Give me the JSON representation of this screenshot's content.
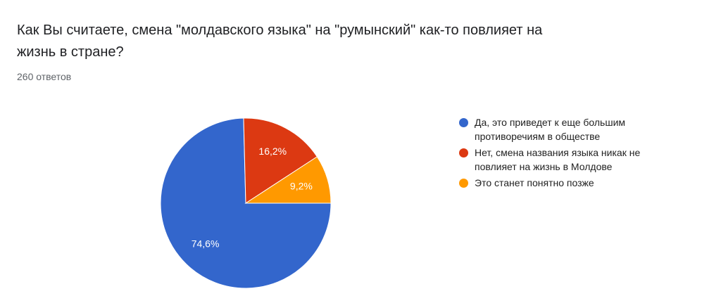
{
  "chart_data": {
    "type": "pie",
    "title": "Как Вы считаете, смена \"молдавского языка\" на \"румынский\" как-то повлияет на жизнь в стране?",
    "subtitle": "260 ответов",
    "categories": [
      "Да, это приведет к еще большим противоречиям в обществе",
      "Нет, смена названия языка никак не повлияет на жизнь в Молдове",
      "Это станет понятно позже"
    ],
    "values": [
      74.6,
      16.2,
      9.2
    ],
    "value_labels": [
      "74,6%",
      "16,2%",
      "9,2%"
    ],
    "colors": [
      "#3366cc",
      "#dc3912",
      "#ff9900"
    ],
    "legend": "right"
  }
}
